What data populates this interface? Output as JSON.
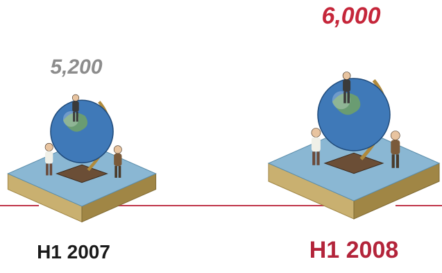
{
  "chart_data": {
    "type": "bar",
    "categories": [
      "H1 2007",
      "H1 2008"
    ],
    "values": [
      5200,
      6000
    ],
    "value_labels": [
      "5,200",
      "6,000"
    ],
    "ylim": [
      0,
      6000
    ],
    "grid": false,
    "legend": "none",
    "colors": {
      "label_past": "#8c8c8c",
      "value_current": "#c5263a",
      "period_past": "#1a1a1a",
      "period_current": "#b3243a",
      "baseline": "#c0364a",
      "platform_top": "#8ab7d3",
      "platform_side": "#c9b070",
      "platform_dark": "#a08645",
      "globe": "#3f79b8",
      "globe_land": "#6fa06a",
      "stand": "#b08a3c"
    }
  }
}
